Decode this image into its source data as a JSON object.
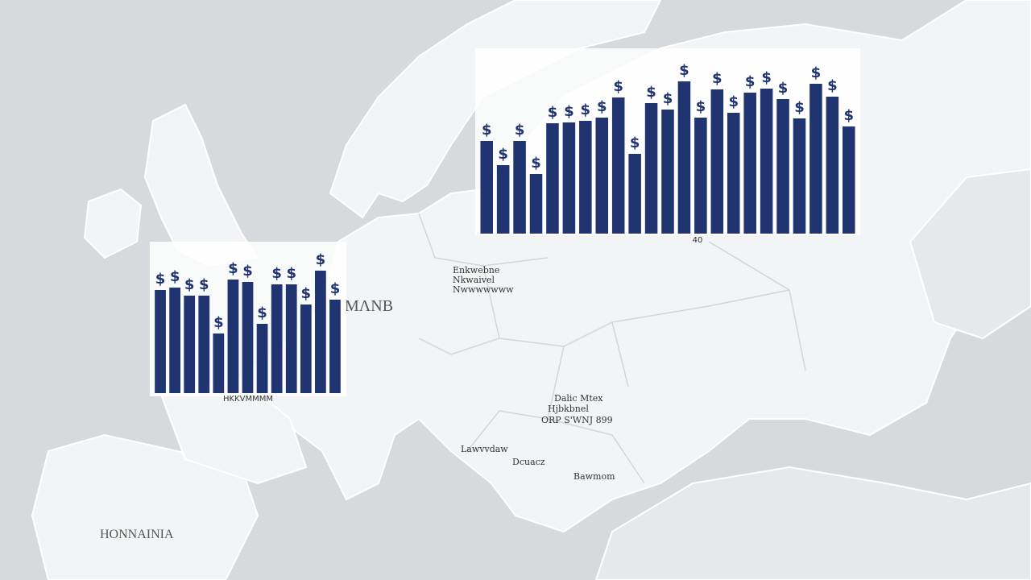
{
  "map": {
    "labels": [
      "ΜΛΝΒ",
      "Enkwebne",
      "Nkwaivel",
      "Nwwwwwww",
      "Dalic Mtex",
      "Hjbkbnel",
      "ORP S'WNJ 899",
      "Lawvvdaw",
      "Dcuacz",
      "Bawmom",
      "HONNAINIA"
    ]
  },
  "chart_data": [
    {
      "type": "bar",
      "xlabel": "HKKVMMMM",
      "color": "#1f3470",
      "values": [
        128,
        131,
        121,
        121,
        74,
        141,
        138,
        86,
        135,
        135,
        110,
        152,
        116
      ]
    },
    {
      "type": "bar",
      "xlabel": "40",
      "color": "#1f3470",
      "values": [
        115,
        85,
        115,
        74,
        137,
        138,
        140,
        144,
        169,
        99,
        162,
        154,
        189,
        144,
        179,
        150,
        175,
        180,
        167,
        143,
        186,
        170,
        133
      ]
    }
  ]
}
